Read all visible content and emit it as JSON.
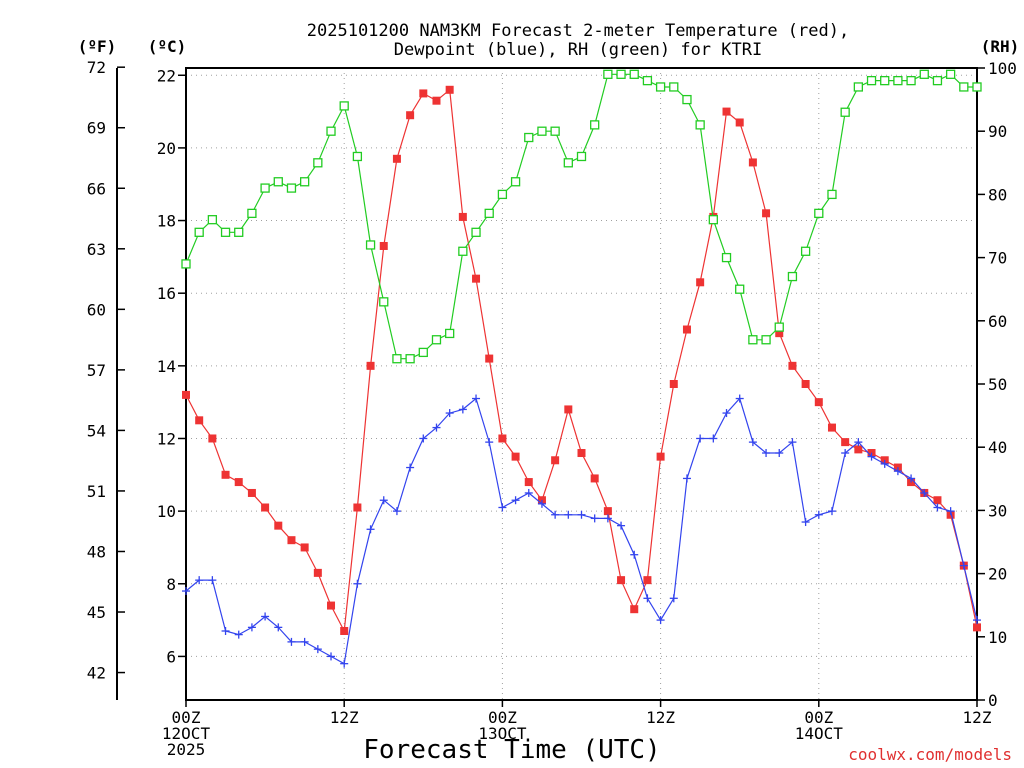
{
  "chart_data": {
    "type": "line",
    "title_lines": [
      "2025101200 NAM3KM Forecast 2-meter Temperature (red),",
      "Dewpoint (blue), RH (green) for KTRI"
    ],
    "xlabel": "Forecast Time (UTC)",
    "credit": "coolwx.com/models",
    "x_range": [
      0,
      60
    ],
    "x_ticks": [
      {
        "hour": 0,
        "lines": [
          "00Z",
          "12OCT",
          "2025"
        ]
      },
      {
        "hour": 12,
        "lines": [
          "12Z"
        ]
      },
      {
        "hour": 24,
        "lines": [
          "00Z",
          "13OCT"
        ]
      },
      {
        "hour": 36,
        "lines": [
          "12Z"
        ]
      },
      {
        "hour": 48,
        "lines": [
          "00Z",
          "14OCT"
        ]
      },
      {
        "hour": 60,
        "lines": [
          "12Z"
        ]
      }
    ],
    "left_axis_c": {
      "unit": "(ºC)",
      "range": [
        4.8,
        22.2
      ],
      "ticks": [
        6,
        8,
        10,
        12,
        14,
        16,
        18,
        20,
        22
      ]
    },
    "left_axis_f": {
      "unit": "(ºF)",
      "ticks": [
        42,
        45,
        48,
        51,
        54,
        57,
        60,
        63,
        66,
        69,
        72
      ]
    },
    "right_axis_rh": {
      "unit": "(RH)",
      "range": [
        0,
        100
      ],
      "ticks": [
        0,
        10,
        20,
        30,
        40,
        50,
        60,
        70,
        80,
        90,
        100
      ]
    },
    "series": [
      {
        "name": "Temperature",
        "color": "#ee3333",
        "marker": "filled-square",
        "units": "C",
        "x": [
          0,
          1,
          2,
          3,
          4,
          5,
          6,
          7,
          8,
          9,
          10,
          11,
          12,
          13,
          14,
          15,
          16,
          17,
          18,
          19,
          20,
          21,
          22,
          23,
          24,
          25,
          26,
          27,
          28,
          29,
          30,
          31,
          32,
          33,
          34,
          35,
          36,
          37,
          38,
          39,
          40,
          41,
          42,
          43,
          44,
          45,
          46,
          47,
          48,
          49,
          50,
          51,
          52,
          53,
          54,
          55,
          56,
          57,
          58,
          59,
          60
        ],
        "values": [
          13.2,
          12.5,
          12.0,
          11.0,
          10.8,
          10.5,
          10.1,
          9.6,
          9.2,
          9.0,
          8.3,
          7.4,
          6.7,
          10.1,
          14.0,
          17.3,
          19.7,
          20.9,
          21.5,
          21.3,
          21.6,
          18.1,
          16.4,
          14.2,
          12.0,
          11.5,
          10.8,
          10.3,
          11.4,
          12.8,
          11.6,
          10.9,
          10.0,
          8.1,
          7.3,
          8.1,
          11.5,
          13.5,
          15.0,
          16.3,
          18.1,
          21.0,
          20.7,
          19.6,
          18.2,
          14.9,
          14.0,
          13.5,
          13.0,
          12.3,
          11.9,
          11.7,
          11.6,
          11.4,
          11.2,
          10.8,
          10.5,
          10.3,
          9.9,
          8.5,
          6.8
        ]
      },
      {
        "name": "Dewpoint",
        "color": "#3344ee",
        "marker": "plus",
        "units": "C",
        "x": [
          0,
          1,
          2,
          3,
          4,
          5,
          6,
          7,
          8,
          9,
          10,
          11,
          12,
          13,
          14,
          15,
          16,
          17,
          18,
          19,
          20,
          21,
          22,
          23,
          24,
          25,
          26,
          27,
          28,
          29,
          30,
          31,
          32,
          33,
          34,
          35,
          36,
          37,
          38,
          39,
          40,
          41,
          42,
          43,
          44,
          45,
          46,
          47,
          48,
          49,
          50,
          51,
          52,
          53,
          54,
          55,
          56,
          57,
          58,
          59,
          60
        ],
        "values": [
          7.8,
          8.1,
          8.1,
          6.7,
          6.6,
          6.8,
          7.1,
          6.8,
          6.4,
          6.4,
          6.2,
          6.0,
          5.8,
          8.0,
          9.5,
          10.3,
          10.0,
          11.2,
          12.0,
          12.3,
          12.7,
          12.8,
          13.1,
          11.9,
          10.1,
          10.3,
          10.5,
          10.2,
          9.9,
          9.9,
          9.9,
          9.8,
          9.8,
          9.6,
          8.8,
          7.6,
          7.0,
          7.6,
          10.9,
          12.0,
          12.0,
          12.7,
          13.1,
          11.9,
          11.6,
          11.6,
          11.9,
          9.7,
          9.9,
          10.0,
          11.6,
          11.9,
          11.5,
          11.3,
          11.1,
          10.9,
          10.5,
          10.1,
          10.0,
          8.5,
          7.0
        ]
      },
      {
        "name": "Relative Humidity",
        "color": "#22cc22",
        "marker": "open-square",
        "units": "%",
        "x": [
          0,
          1,
          2,
          3,
          4,
          5,
          6,
          7,
          8,
          9,
          10,
          11,
          12,
          13,
          14,
          15,
          16,
          17,
          18,
          19,
          20,
          21,
          22,
          23,
          24,
          25,
          26,
          27,
          28,
          29,
          30,
          31,
          32,
          33,
          34,
          35,
          36,
          37,
          38,
          39,
          40,
          41,
          42,
          43,
          44,
          45,
          46,
          47,
          48,
          49,
          50,
          51,
          52,
          53,
          54,
          55,
          56,
          57,
          58,
          59,
          60
        ],
        "values": [
          69,
          74,
          76,
          74,
          74,
          77,
          81,
          82,
          81,
          82,
          85,
          90,
          94,
          86,
          72,
          63,
          54,
          54,
          55,
          57,
          58,
          71,
          74,
          77,
          80,
          82,
          89,
          90,
          90,
          85,
          86,
          91,
          99,
          99,
          99,
          98,
          97,
          97,
          95,
          91,
          76,
          70,
          65,
          57,
          57,
          59,
          67,
          71,
          77,
          80,
          93,
          97,
          98,
          98,
          98,
          98,
          99,
          98,
          99,
          97,
          97
        ]
      }
    ]
  }
}
